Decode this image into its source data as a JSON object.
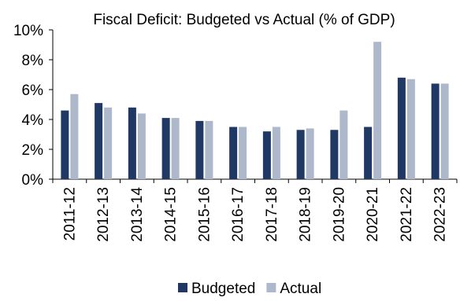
{
  "chart_data": {
    "type": "bar",
    "title": "Fiscal Deficit: Budgeted vs Actual (% of GDP)",
    "xlabel": "",
    "ylabel": "",
    "categories": [
      "2011-12",
      "2012-13",
      "2013-14",
      "2014-15",
      "2015-16",
      "2016-17",
      "2017-18",
      "2018-19",
      "2019-20",
      "2020-21",
      "2021-22",
      "2022-23"
    ],
    "series": [
      {
        "name": "Budgeted",
        "color": "#1f3864",
        "values": [
          4.6,
          5.1,
          4.8,
          4.1,
          3.9,
          3.5,
          3.2,
          3.3,
          3.3,
          3.5,
          6.8,
          6.4
        ]
      },
      {
        "name": "Actual",
        "color": "#adb9ca",
        "values": [
          5.7,
          4.8,
          4.4,
          4.1,
          3.9,
          3.5,
          3.5,
          3.4,
          4.6,
          9.2,
          6.7,
          6.4
        ]
      }
    ],
    "ylim": [
      0,
      10
    ],
    "yticks": [
      "0%",
      "2%",
      "4%",
      "6%",
      "8%",
      "10%"
    ],
    "grid": false,
    "legend_position": "bottom"
  }
}
